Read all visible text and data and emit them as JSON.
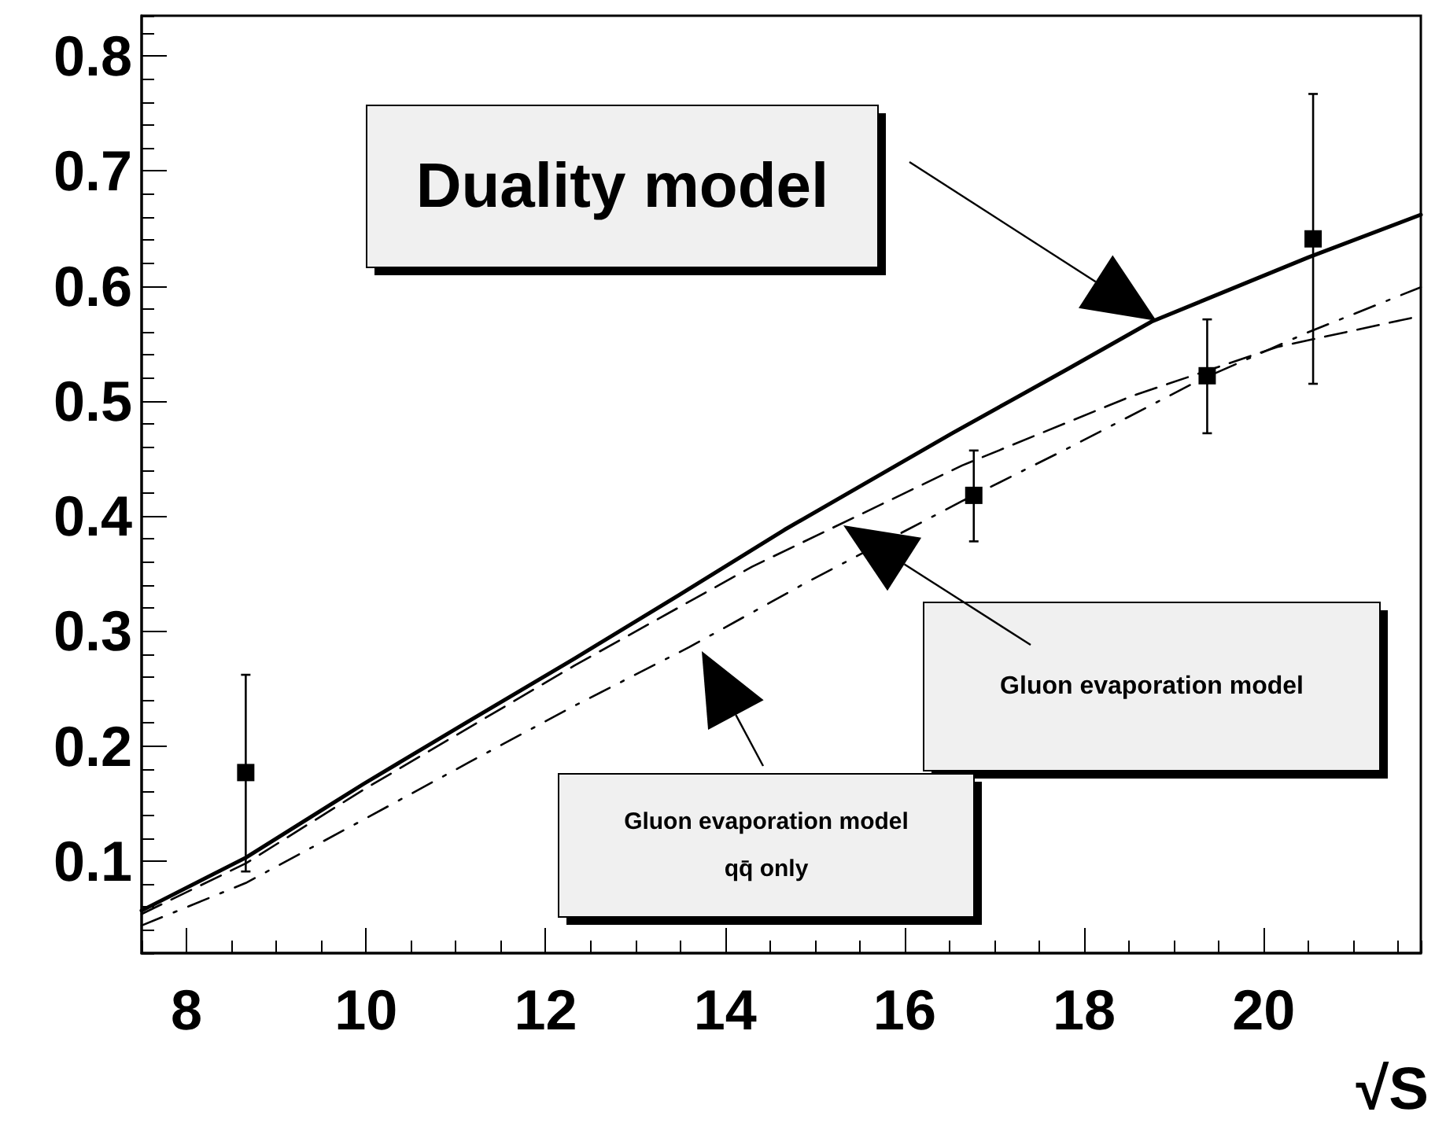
{
  "chart_data": {
    "type": "line",
    "xlabel": "√S",
    "xlim": [
      7.5,
      21.75
    ],
    "xticks": [
      8,
      10,
      12,
      14,
      16,
      18,
      20
    ],
    "ylim": [
      0.02,
      0.835
    ],
    "yticks": [
      0.1,
      0.2,
      0.3,
      0.4,
      0.5,
      0.6,
      0.7,
      0.8
    ],
    "grid": false,
    "annotations": [
      "Duality model",
      "Gluon evaporation model",
      "Gluon evaporation model\nqq̄ only"
    ],
    "series": [
      {
        "color": "#000000",
        "line_style": "solid",
        "marker": "none",
        "x": [
          7.5,
          8.66,
          9.97,
          11.15,
          12.32,
          13.48,
          14.66,
          16.53,
          17.82,
          18.75,
          20.5,
          21.75
        ],
        "values": [
          0.057,
          0.103,
          0.167,
          0.222,
          0.276,
          0.331,
          0.388,
          0.472,
          0.528,
          0.569,
          0.625,
          0.662
        ]
      },
      {
        "color": "#000000",
        "line_style": "dashed",
        "marker": "none",
        "x": [
          7.5,
          8.66,
          9.97,
          12.32,
          14.3,
          16.64,
          18.52,
          20.15,
          21.75
        ],
        "values": [
          0.054,
          0.098,
          0.162,
          0.27,
          0.356,
          0.444,
          0.504,
          0.547,
          0.574
        ]
      },
      {
        "color": "#000000",
        "line_style": "dashdot",
        "marker": "none",
        "x": [
          7.5,
          8.66,
          9.97,
          11.15,
          12.32,
          13.6,
          14.9,
          16.64,
          17.82,
          19.28,
          20.5,
          21.75
        ],
        "values": [
          0.044,
          0.081,
          0.136,
          0.186,
          0.235,
          0.286,
          0.342,
          0.413,
          0.459,
          0.518,
          0.56,
          0.599
        ]
      },
      {
        "type": "scatter",
        "color": "#000000",
        "marker": "square",
        "x": [
          8.66,
          16.77,
          19.37,
          20.55
        ],
        "values": [
          0.177,
          0.418,
          0.522,
          0.641
        ],
        "errors": [
          [
            0.091,
            0.262
          ],
          [
            0.378,
            0.457
          ],
          [
            0.472,
            0.571
          ],
          [
            0.515,
            0.767
          ]
        ]
      }
    ]
  }
}
